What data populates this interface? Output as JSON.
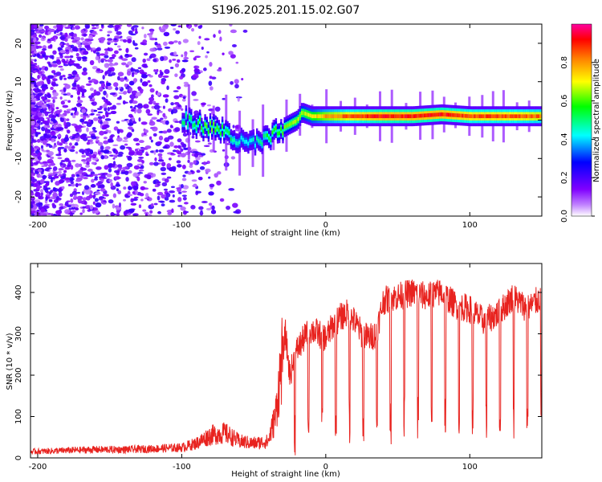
{
  "chart_data": [
    {
      "type": "heatmap",
      "title": "S196.2025.201.15.02.G07",
      "xlabel": "Height of straight line (km)",
      "ylabel": "Frequency (Hz)",
      "colorbar_label": "Normalized spectral amplitude",
      "xlim": [
        -205,
        150
      ],
      "ylim": [
        -25,
        25
      ],
      "xticks": [
        -200,
        -100,
        0,
        100
      ],
      "yticks": [
        -20,
        -10,
        0,
        10,
        20
      ],
      "colorbar_ticks": [
        "0.0",
        "0.2",
        "0.4",
        "0.6",
        "0.8"
      ],
      "colorbar_range": [
        0,
        1
      ],
      "colormap": [
        "#ffffff",
        "#8000ff",
        "#0000ff",
        "#00ffff",
        "#00ff00",
        "#ffff00",
        "#ff8000",
        "#ff0000",
        "#ff00a0"
      ],
      "ridge": {
        "x": [
          -100,
          -90,
          -80,
          -70,
          -60,
          -50,
          -40,
          -30,
          -20,
          -17,
          -10,
          0,
          20,
          40,
          60,
          80,
          100,
          120,
          150
        ],
        "frequency": [
          0,
          -1,
          -2,
          -3,
          -6,
          -6,
          -5,
          -2,
          0,
          2,
          1,
          1,
          1,
          1,
          1,
          1.5,
          1,
          1,
          1
        ],
        "amplitude": [
          0.45,
          0.5,
          0.55,
          0.5,
          0.4,
          0.4,
          0.5,
          0.55,
          0.6,
          0.6,
          0.65,
          0.75,
          0.85,
          0.9,
          0.9,
          0.9,
          0.85,
          0.85,
          0.8
        ]
      }
    },
    {
      "type": "line",
      "title": "",
      "xlabel": "Height of straight line (km)",
      "ylabel": "SNR (10 * v/v)",
      "xlim": [
        -205,
        150
      ],
      "ylim": [
        0,
        470
      ],
      "xticks": [
        -200,
        -100,
        0,
        100
      ],
      "yticks": [
        0,
        100,
        200,
        300,
        400
      ],
      "color": "#e8231f",
      "x": [
        -205,
        -180,
        -160,
        -140,
        -120,
        -100,
        -90,
        -80,
        -70,
        -60,
        -50,
        -40,
        -35,
        -30,
        -28,
        -25,
        -20,
        -15,
        -10,
        -5,
        0,
        5,
        10,
        15,
        20,
        25,
        30,
        35,
        40,
        50,
        60,
        70,
        80,
        90,
        100,
        110,
        120,
        130,
        140,
        150
      ],
      "values": [
        15,
        18,
        20,
        20,
        22,
        25,
        35,
        55,
        60,
        40,
        35,
        40,
        100,
        250,
        300,
        200,
        260,
        290,
        310,
        300,
        290,
        320,
        340,
        350,
        330,
        300,
        290,
        300,
        380,
        390,
        400,
        390,
        400,
        370,
        360,
        330,
        350,
        390,
        360,
        390
      ]
    }
  ]
}
